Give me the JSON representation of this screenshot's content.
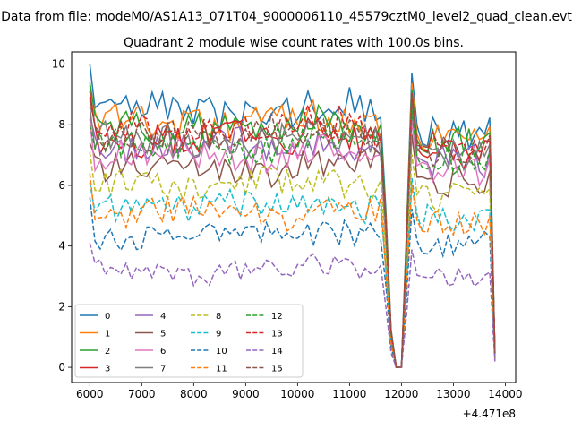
{
  "figure": {
    "suptitle": "Data from file: modeM0/AS1A13_071T04_9000006110_45579cztM0_level2_quad_clean.evt",
    "title": "Quadrant 2 module wise count rates with 100.0s bins.",
    "x_offset_label": "+4.471e8"
  },
  "chart_data": {
    "type": "line",
    "title": "Quadrant 2 module wise count rates with 100.0s bins.",
    "xlabel": "",
    "ylabel": "",
    "xlim": [
      5650,
      14200
    ],
    "ylim": [
      -0.5,
      10.4
    ],
    "x_ticks": [
      6000,
      7000,
      8000,
      9000,
      10000,
      11000,
      12000,
      13000,
      14000
    ],
    "y_ticks": [
      0,
      2,
      4,
      6,
      8,
      10
    ],
    "x_offset": 447100000,
    "grid": false,
    "legend": {
      "position": "lower-left",
      "columns": 4
    },
    "x_start": 6000,
    "x_step": 100,
    "gap": {
      "x": [
        11700,
        11800,
        11900,
        12000,
        12100,
        12200,
        12300
      ],
      "factor": [
        0.62,
        0.15,
        0.0,
        0.0,
        0.55,
        1.0,
        0.88
      ]
    },
    "end": {
      "x": [
        13700,
        13800
      ],
      "factor": [
        1.0,
        0.06
      ]
    },
    "series": [
      {
        "name": "0",
        "color": "#1f77b4",
        "dash": "solid",
        "level": 8.4,
        "start": 10.0
      },
      {
        "name": "1",
        "color": "#ff7f0e",
        "dash": "solid",
        "level": 8.1,
        "start": 9.3
      },
      {
        "name": "2",
        "color": "#2ca02c",
        "dash": "solid",
        "level": 7.9,
        "start": 9.4
      },
      {
        "name": "3",
        "color": "#d62728",
        "dash": "solid",
        "level": 7.6,
        "start": 9.1
      },
      {
        "name": "4",
        "color": "#9467bd",
        "dash": "solid",
        "level": 7.3,
        "start": 8.3
      },
      {
        "name": "5",
        "color": "#8c564b",
        "dash": "solid",
        "level": 6.6,
        "start": 7.4
      },
      {
        "name": "6",
        "color": "#e377c2",
        "dash": "solid",
        "level": 7.0,
        "start": 8.2
      },
      {
        "name": "7",
        "color": "#7f7f7f",
        "dash": "solid",
        "level": 7.5,
        "start": 8.6
      },
      {
        "name": "8",
        "color": "#bcbd22",
        "dash": "dashed",
        "level": 6.0,
        "start": 7.1
      },
      {
        "name": "9",
        "color": "#17becf",
        "dash": "dashed",
        "level": 5.3,
        "start": 6.1
      },
      {
        "name": "10",
        "color": "#1f77b4",
        "dash": "dashed",
        "level": 4.4,
        "start": 5.6
      },
      {
        "name": "11",
        "color": "#ff7f0e",
        "dash": "dashed",
        "level": 5.1,
        "start": 6.4
      },
      {
        "name": "12",
        "color": "#2ca02c",
        "dash": "dashed",
        "level": 7.3,
        "start": 8.0
      },
      {
        "name": "13",
        "color": "#d62728",
        "dash": "dashed",
        "level": 7.8,
        "start": 8.9
      },
      {
        "name": "14",
        "color": "#9467bd",
        "dash": "dashed",
        "level": 3.2,
        "start": 4.1
      },
      {
        "name": "15",
        "color": "#8c564b",
        "dash": "dashed",
        "level": 7.7,
        "start": 8.8
      }
    ]
  }
}
